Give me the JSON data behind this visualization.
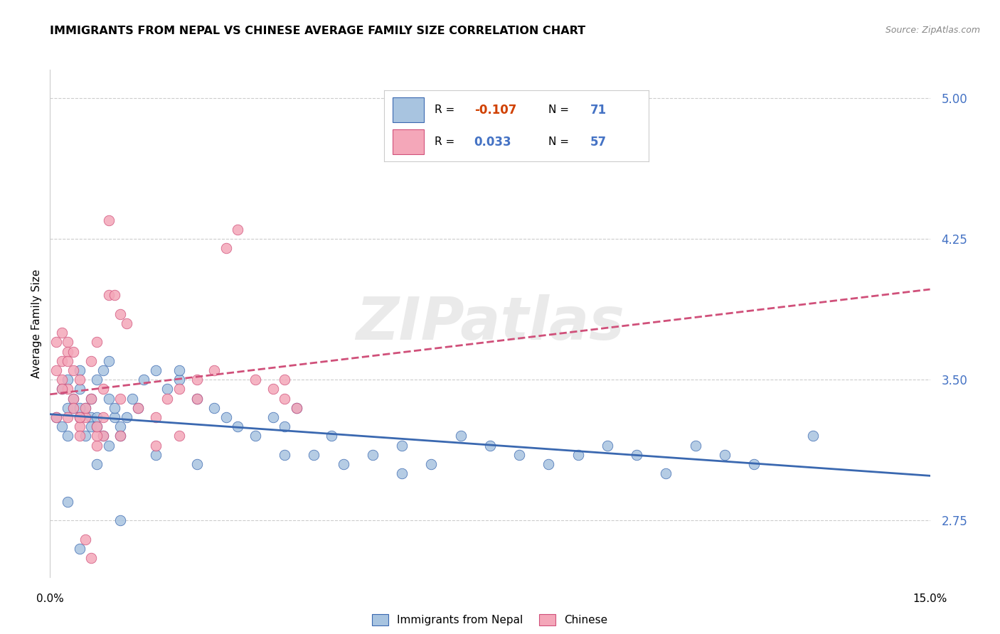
{
  "title": "IMMIGRANTS FROM NEPAL VS CHINESE AVERAGE FAMILY SIZE CORRELATION CHART",
  "source": "Source: ZipAtlas.com",
  "ylabel": "Average Family Size",
  "yticks": [
    2.75,
    3.5,
    4.25,
    5.0
  ],
  "ytick_labels": [
    "2.75",
    "3.50",
    "4.25",
    "5.00"
  ],
  "xlim": [
    0.0,
    0.15
  ],
  "ylim": [
    2.45,
    5.15
  ],
  "watermark": "ZIPatlas",
  "nepal_color": "#a8c4e0",
  "nepal_line_color": "#3a68b0",
  "chinese_color": "#f4a7b9",
  "chinese_line_color": "#d0507a",
  "nepal_label": "Immigrants from Nepal",
  "chinese_label": "Chinese",
  "nepal_R": "-0.107",
  "nepal_N": "71",
  "chinese_R": "0.033",
  "chinese_N": "57",
  "tick_color": "#4472c4",
  "nepal_x": [
    0.001,
    0.002,
    0.002,
    0.003,
    0.003,
    0.003,
    0.004,
    0.004,
    0.005,
    0.005,
    0.005,
    0.006,
    0.006,
    0.007,
    0.007,
    0.007,
    0.008,
    0.008,
    0.008,
    0.009,
    0.009,
    0.01,
    0.01,
    0.01,
    0.011,
    0.011,
    0.012,
    0.012,
    0.013,
    0.014,
    0.015,
    0.016,
    0.018,
    0.02,
    0.022,
    0.025,
    0.028,
    0.03,
    0.032,
    0.035,
    0.038,
    0.04,
    0.042,
    0.045,
    0.048,
    0.05,
    0.055,
    0.06,
    0.065,
    0.07,
    0.075,
    0.08,
    0.085,
    0.09,
    0.095,
    0.1,
    0.105,
    0.11,
    0.115,
    0.12,
    0.003,
    0.005,
    0.008,
    0.012,
    0.018,
    0.022,
    0.025,
    0.04,
    0.06,
    0.13,
    0.005
  ],
  "nepal_y": [
    3.3,
    3.25,
    3.45,
    3.2,
    3.35,
    3.5,
    3.4,
    3.35,
    3.3,
    3.45,
    3.55,
    3.35,
    3.2,
    3.3,
    3.25,
    3.4,
    3.5,
    3.25,
    3.3,
    3.55,
    3.2,
    3.4,
    3.6,
    3.15,
    3.3,
    3.35,
    3.2,
    3.25,
    3.3,
    3.4,
    3.35,
    3.5,
    3.55,
    3.45,
    3.5,
    3.4,
    3.35,
    3.3,
    3.25,
    3.2,
    3.3,
    3.25,
    3.35,
    3.1,
    3.2,
    3.05,
    3.1,
    3.15,
    3.05,
    3.2,
    3.15,
    3.1,
    3.05,
    3.1,
    3.15,
    3.1,
    3.0,
    3.15,
    3.1,
    3.05,
    2.85,
    2.6,
    3.05,
    2.75,
    3.1,
    3.55,
    3.05,
    3.1,
    3.0,
    3.2,
    3.35
  ],
  "chinese_x": [
    0.001,
    0.001,
    0.001,
    0.002,
    0.002,
    0.002,
    0.003,
    0.003,
    0.003,
    0.004,
    0.004,
    0.004,
    0.005,
    0.005,
    0.005,
    0.006,
    0.006,
    0.007,
    0.007,
    0.008,
    0.008,
    0.009,
    0.009,
    0.01,
    0.01,
    0.011,
    0.012,
    0.013,
    0.015,
    0.018,
    0.02,
    0.022,
    0.025,
    0.028,
    0.03,
    0.032,
    0.035,
    0.038,
    0.04,
    0.042,
    0.003,
    0.005,
    0.008,
    0.012,
    0.018,
    0.022,
    0.025,
    0.04,
    0.002,
    0.003,
    0.004,
    0.005,
    0.006,
    0.007,
    0.008,
    0.009,
    0.012
  ],
  "chinese_y": [
    3.3,
    3.55,
    3.7,
    3.75,
    3.6,
    3.5,
    3.45,
    3.7,
    3.65,
    3.55,
    3.4,
    3.35,
    3.3,
    3.25,
    3.2,
    3.3,
    3.35,
    3.4,
    3.6,
    3.7,
    3.15,
    3.2,
    3.3,
    4.35,
    3.95,
    3.95,
    3.85,
    3.8,
    3.35,
    3.3,
    3.4,
    3.45,
    3.5,
    3.55,
    4.2,
    4.3,
    3.5,
    3.45,
    3.4,
    3.35,
    3.3,
    3.5,
    3.2,
    3.4,
    3.15,
    3.2,
    3.4,
    3.5,
    3.45,
    3.6,
    3.65,
    3.3,
    2.65,
    2.55,
    3.25,
    3.45,
    3.2
  ]
}
